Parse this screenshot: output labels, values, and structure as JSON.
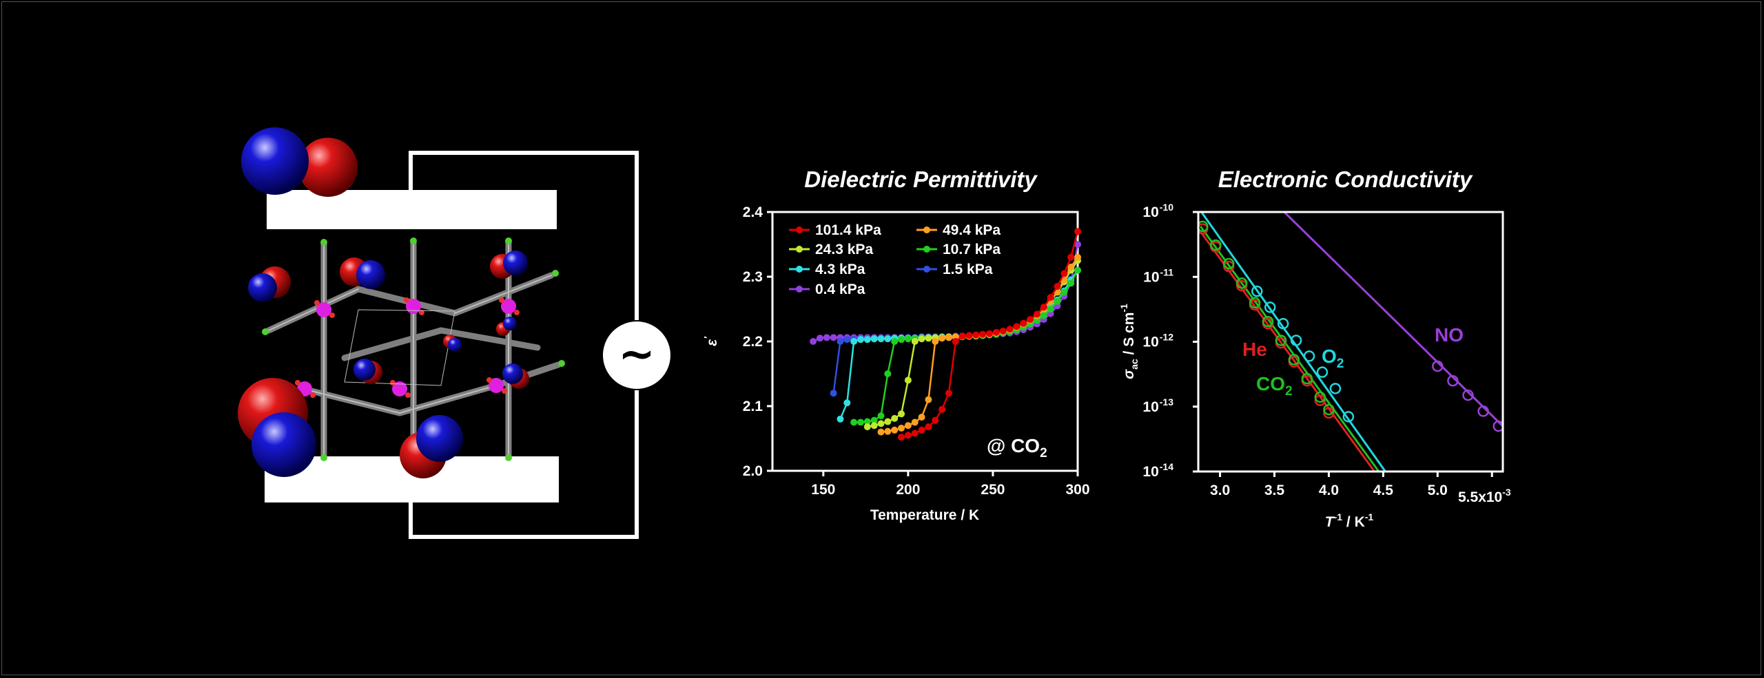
{
  "colors": {
    "background": "#000000",
    "oxygen_red": "#e01010",
    "nitrogen_blue": "#1a1ad0",
    "framework_gray": "#8a8a8a",
    "metal_magenta": "#e020e0",
    "halogen_green": "#50d030"
  },
  "ac_symbol": "~",
  "chart_data": [
    {
      "type": "line",
      "title": "Dielectric Permittivity",
      "xlabel": "Temperature / K",
      "ylabel": "ε'",
      "xlim": [
        120,
        300
      ],
      "ylim": [
        2.0,
        2.4
      ],
      "xticks": [
        "150",
        "200",
        "250",
        "300"
      ],
      "yticks": [
        "2.0",
        "2.1",
        "2.2",
        "2.3",
        "2.4"
      ],
      "annotation": "@ CO2",
      "legend_position": "top-left",
      "series": [
        {
          "name": "101.4 kPa",
          "color": "#e00000",
          "x": [
            196,
            200,
            204,
            208,
            212,
            216,
            220,
            224,
            228,
            232,
            236,
            240,
            244,
            248,
            252,
            256,
            260,
            264,
            268,
            272,
            276,
            280,
            284,
            288,
            292,
            296,
            300
          ],
          "y": [
            2.052,
            2.055,
            2.058,
            2.063,
            2.068,
            2.078,
            2.095,
            2.12,
            2.2,
            2.208,
            2.209,
            2.21,
            2.211,
            2.212,
            2.214,
            2.216,
            2.219,
            2.223,
            2.228,
            2.234,
            2.242,
            2.253,
            2.268,
            2.285,
            2.305,
            2.33,
            2.37
          ]
        },
        {
          "name": "49.4 kPa",
          "color": "#ffa020",
          "x": [
            184,
            188,
            192,
            196,
            200,
            204,
            208,
            212,
            216,
            220,
            224,
            228,
            232,
            236,
            240,
            244,
            248,
            252,
            256,
            260,
            264,
            268,
            272,
            276,
            280,
            284,
            288,
            292,
            296,
            300
          ],
          "y": [
            2.06,
            2.061,
            2.063,
            2.066,
            2.07,
            2.075,
            2.083,
            2.11,
            2.2,
            2.205,
            2.206,
            2.207,
            2.208,
            2.208,
            2.209,
            2.21,
            2.211,
            2.213,
            2.215,
            2.218,
            2.222,
            2.227,
            2.233,
            2.24,
            2.25,
            2.262,
            2.277,
            2.295,
            2.315,
            2.33
          ]
        },
        {
          "name": "24.3 kPa",
          "color": "#c0e830",
          "x": [
            176,
            180,
            184,
            188,
            192,
            196,
            200,
            204,
            208,
            212,
            216,
            220,
            224,
            228,
            232,
            236,
            240,
            244,
            248,
            252,
            256,
            260,
            264,
            268,
            272,
            276,
            280,
            284,
            288,
            292,
            296,
            300
          ],
          "y": [
            2.068,
            2.07,
            2.073,
            2.076,
            2.081,
            2.088,
            2.14,
            2.2,
            2.204,
            2.205,
            2.206,
            2.206,
            2.207,
            2.207,
            2.208,
            2.208,
            2.209,
            2.21,
            2.211,
            2.213,
            2.215,
            2.218,
            2.222,
            2.227,
            2.233,
            2.24,
            2.25,
            2.262,
            2.276,
            2.292,
            2.31,
            2.325
          ]
        },
        {
          "name": "10.7 kPa",
          "color": "#20d020",
          "x": [
            168,
            172,
            176,
            180,
            184,
            188,
            192,
            196,
            200,
            204,
            208,
            212,
            216,
            220,
            224,
            228,
            232,
            236,
            240,
            244,
            248,
            252,
            256,
            260,
            264,
            268,
            272,
            276,
            280,
            284,
            288,
            292,
            296,
            300
          ],
          "y": [
            2.075,
            2.075,
            2.076,
            2.078,
            2.085,
            2.15,
            2.2,
            2.203,
            2.204,
            2.204,
            2.205,
            2.205,
            2.205,
            2.206,
            2.206,
            2.207,
            2.207,
            2.208,
            2.208,
            2.209,
            2.21,
            2.211,
            2.213,
            2.215,
            2.218,
            2.222,
            2.227,
            2.233,
            2.24,
            2.25,
            2.262,
            2.276,
            2.29,
            2.31
          ]
        },
        {
          "name": "4.3 kPa",
          "color": "#30e0e0",
          "x": [
            160,
            164,
            168,
            172,
            176,
            180,
            184,
            188,
            192,
            196,
            200,
            204,
            208,
            212,
            216,
            220,
            224,
            228,
            232,
            236,
            240,
            244,
            248,
            252,
            256,
            260,
            264,
            268,
            272,
            276,
            280,
            284,
            288,
            292,
            296,
            300
          ],
          "y": [
            2.08,
            2.105,
            2.2,
            2.203,
            2.203,
            2.204,
            2.204,
            2.204,
            2.205,
            2.205,
            2.205,
            2.205,
            2.206,
            2.206,
            2.206,
            2.207,
            2.207,
            2.207,
            2.208,
            2.208,
            2.209,
            2.21,
            2.211,
            2.212,
            2.214,
            2.216,
            2.219,
            2.223,
            2.228,
            2.234,
            2.242,
            2.252,
            2.264,
            2.278,
            2.295,
            2.31
          ]
        },
        {
          "name": "1.5 kPa",
          "color": "#3050e0",
          "x": [
            156,
            160,
            164,
            168,
            172,
            176,
            180,
            184,
            188,
            192,
            196,
            200,
            204,
            208,
            212,
            216,
            220,
            224,
            228,
            232,
            236,
            240,
            244,
            248,
            252,
            256,
            260,
            264,
            268,
            272,
            276,
            280,
            284,
            288,
            292,
            296,
            300
          ],
          "y": [
            2.12,
            2.2,
            2.203,
            2.203,
            2.204,
            2.204,
            2.204,
            2.205,
            2.205,
            2.205,
            2.205,
            2.206,
            2.206,
            2.206,
            2.206,
            2.207,
            2.207,
            2.207,
            2.208,
            2.208,
            2.209,
            2.209,
            2.21,
            2.211,
            2.212,
            2.214,
            2.216,
            2.219,
            2.223,
            2.228,
            2.234,
            2.242,
            2.252,
            2.264,
            2.278,
            2.296,
            2.31
          ]
        },
        {
          "name": "0.4 kPa",
          "color": "#9040e0",
          "x": [
            144,
            148,
            152,
            156,
            160,
            164,
            168,
            172,
            176,
            180,
            184,
            188,
            192,
            196,
            200,
            204,
            208,
            212,
            216,
            220,
            224,
            228,
            232,
            236,
            240,
            244,
            248,
            252,
            256,
            260,
            264,
            268,
            272,
            276,
            280,
            284,
            288,
            292,
            296,
            300
          ],
          "y": [
            2.2,
            2.205,
            2.206,
            2.206,
            2.206,
            2.206,
            2.206,
            2.206,
            2.206,
            2.206,
            2.206,
            2.206,
            2.206,
            2.206,
            2.206,
            2.206,
            2.207,
            2.207,
            2.207,
            2.207,
            2.207,
            2.208,
            2.208,
            2.208,
            2.209,
            2.209,
            2.21,
            2.211,
            2.212,
            2.213,
            2.215,
            2.218,
            2.222,
            2.227,
            2.234,
            2.243,
            2.255,
            2.27,
            2.29,
            2.35
          ]
        }
      ]
    },
    {
      "type": "line",
      "title": "Electronic Conductivity",
      "xlabel": "T-1 / K-1",
      "ylabel": "σac / S cm-1",
      "xscale_label": "5.5x10-3",
      "xlim": [
        0.0028,
        0.0056
      ],
      "ylim": [
        1e-14,
        1e-10
      ],
      "yscale": "log",
      "xticks": [
        "3.0",
        "3.5",
        "4.0",
        "4.5",
        "5.0"
      ],
      "yticks": [
        "10-14",
        "10-13",
        "10-12",
        "10-11",
        "10-10"
      ],
      "series": [
        {
          "name": "He",
          "color": "#e02020",
          "fit": [
            [
              0.00282,
              5e-11
            ],
            [
              0.00442,
              1e-14
            ]
          ],
          "x": [
            0.00284,
            0.00296,
            0.00308,
            0.0032,
            0.00332,
            0.00344,
            0.00356,
            0.00368,
            0.0038,
            0.00392,
            0.004
          ],
          "y": [
            5.5e-11,
            2.9e-11,
            1.45e-11,
            7.3e-12,
            3.7e-12,
            1.9e-12,
            9.6e-13,
            4.9e-13,
            2.5e-13,
            1.25e-13,
            8e-14
          ]
        },
        {
          "name": "CO2",
          "color": "#20c020",
          "fit": [
            [
              0.00282,
              6e-11
            ],
            [
              0.00446,
              1e-14
            ]
          ],
          "x": [
            0.00284,
            0.00296,
            0.00308,
            0.0032,
            0.00332,
            0.00344,
            0.00356,
            0.00368,
            0.0038,
            0.00392,
            0.004
          ],
          "y": [
            6e-11,
            3.1e-11,
            1.6e-11,
            8e-12,
            4e-12,
            2.05e-12,
            1.05e-12,
            5.3e-13,
            2.7e-13,
            1.4e-13,
            9e-14
          ]
        },
        {
          "name": "O2",
          "color": "#20d8e0",
          "fit": [
            [
              0.00282,
              1.05e-10
            ],
            [
              0.00452,
              1e-14
            ]
          ],
          "x": [
            0.00334,
            0.00346,
            0.00358,
            0.0037,
            0.00382,
            0.00394,
            0.00406,
            0.00418
          ],
          "y": [
            6e-12,
            3.4e-12,
            1.9e-12,
            1.05e-12,
            6e-13,
            3.4e-13,
            1.9e-13,
            7e-14
          ]
        },
        {
          "name": "NO",
          "color": "#9a40d8",
          "fit": [
            [
              0.00359,
              1e-10
            ],
            [
              0.0056,
              5e-14
            ]
          ],
          "x": [
            0.005,
            0.00514,
            0.00528,
            0.00542,
            0.00556
          ],
          "y": [
            4.2e-13,
            2.5e-13,
            1.5e-13,
            8.5e-14,
            5e-14
          ]
        }
      ]
    }
  ]
}
